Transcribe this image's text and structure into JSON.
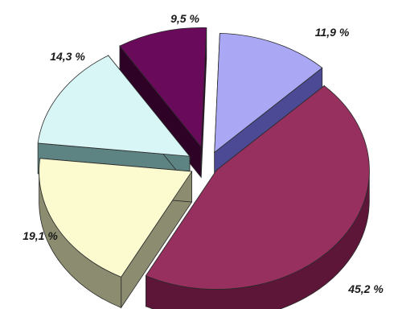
{
  "chart_data": {
    "type": "pie",
    "variant": "3d-exploded",
    "categories": [
      "",
      "",
      "",
      "",
      ""
    ],
    "values": [
      11.9,
      45.2,
      19.1,
      14.3,
      9.5
    ],
    "labels": [
      "11,9 %",
      "45,2 %",
      "19,1 %",
      "14,3 %",
      "9,5 %"
    ],
    "colors": {
      "top": [
        "#aaa8f4",
        "#98305f",
        "#fbfbcf",
        "#d9f6f6",
        "#6a0a5a"
      ],
      "side": [
        "#4d4a95",
        "#5e1638",
        "#8c8c70",
        "#5e8383",
        "#2e0227"
      ]
    },
    "title": "",
    "legend": false
  }
}
